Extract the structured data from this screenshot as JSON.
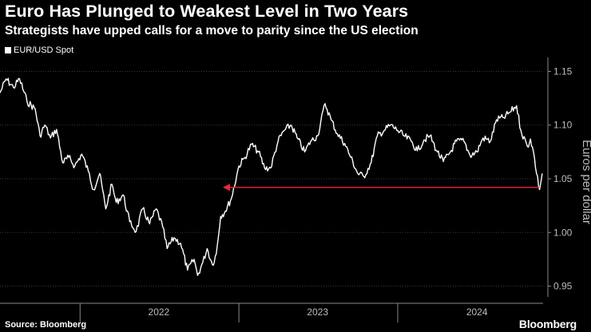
{
  "header": {
    "title": "Euro Has Plunged to Weakest Level in Two Years",
    "subtitle": "Strategists have upped calls for a move to parity since the US election"
  },
  "footer": {
    "source": "Source: Bloomberg",
    "brand": "Bloomberg"
  },
  "colors": {
    "background": "#000000",
    "line": "#ffffff",
    "arrow": "#e8283c",
    "grid": "#3a3a3a",
    "tick_text": "#bdbdbd"
  },
  "chart_data": {
    "type": "line",
    "ylabel": "Euros per dollar",
    "ylim": [
      0.94,
      1.16
    ],
    "yticks": [
      0.95,
      1.0,
      1.05,
      1.1,
      1.15
    ],
    "ytick_labels": [
      "0.95",
      "1.00",
      "1.05",
      "1.10",
      "1.15"
    ],
    "xlim": [
      "2021-07-01",
      "2024-11-30"
    ],
    "x_year_labels": [
      {
        "label": "2022",
        "at": "2022-07-01"
      },
      {
        "label": "2023",
        "at": "2023-07-01"
      },
      {
        "label": "2024",
        "at": "2024-07-01"
      }
    ],
    "x_year_boundaries": [
      "2022-01-01",
      "2023-01-01",
      "2024-01-01"
    ],
    "grid": true,
    "series": [
      {
        "name": "EUR/USD Spot",
        "points": [
          [
            "2021-07-01",
            1.13
          ],
          [
            "2021-07-15",
            1.143
          ],
          [
            "2021-08-01",
            1.135
          ],
          [
            "2021-08-15",
            1.143
          ],
          [
            "2021-09-01",
            1.122
          ],
          [
            "2021-09-20",
            1.115
          ],
          [
            "2021-10-01",
            1.09
          ],
          [
            "2021-10-12",
            1.1
          ],
          [
            "2021-10-25",
            1.088
          ],
          [
            "2021-11-08",
            1.096
          ],
          [
            "2021-11-22",
            1.065
          ],
          [
            "2021-12-06",
            1.07
          ],
          [
            "2021-12-20",
            1.062
          ],
          [
            "2022-01-05",
            1.073
          ],
          [
            "2022-01-20",
            1.057
          ],
          [
            "2022-02-01",
            1.04
          ],
          [
            "2022-02-15",
            1.055
          ],
          [
            "2022-03-01",
            1.022
          ],
          [
            "2022-03-15",
            1.045
          ],
          [
            "2022-03-25",
            1.028
          ],
          [
            "2022-04-10",
            1.035
          ],
          [
            "2022-04-25",
            1.01
          ],
          [
            "2022-05-10",
            1.001
          ],
          [
            "2022-05-25",
            1.022
          ],
          [
            "2022-06-10",
            1.008
          ],
          [
            "2022-06-25",
            1.022
          ],
          [
            "2022-07-10",
            1.005
          ],
          [
            "2022-07-20",
            0.985
          ],
          [
            "2022-08-05",
            0.995
          ],
          [
            "2022-08-20",
            0.99
          ],
          [
            "2022-09-05",
            0.965
          ],
          [
            "2022-09-20",
            0.975
          ],
          [
            "2022-09-28",
            0.96
          ],
          [
            "2022-10-10",
            0.972
          ],
          [
            "2022-10-20",
            0.985
          ],
          [
            "2022-11-01",
            0.97
          ],
          [
            "2022-11-10",
            0.98
          ],
          [
            "2022-11-20",
            1.015
          ],
          [
            "2022-12-01",
            1.02
          ],
          [
            "2022-12-15",
            1.032
          ],
          [
            "2023-01-01",
            1.062
          ],
          [
            "2023-01-15",
            1.07
          ],
          [
            "2023-01-30",
            1.082
          ],
          [
            "2023-02-15",
            1.075
          ],
          [
            "2023-03-01",
            1.06
          ],
          [
            "2023-03-15",
            1.06
          ],
          [
            "2023-04-01",
            1.085
          ],
          [
            "2023-04-15",
            1.095
          ],
          [
            "2023-05-01",
            1.1
          ],
          [
            "2023-05-15",
            1.088
          ],
          [
            "2023-06-01",
            1.075
          ],
          [
            "2023-06-15",
            1.085
          ],
          [
            "2023-07-01",
            1.09
          ],
          [
            "2023-07-18",
            1.12
          ],
          [
            "2023-08-01",
            1.105
          ],
          [
            "2023-08-15",
            1.092
          ],
          [
            "2023-09-01",
            1.083
          ],
          [
            "2023-09-15",
            1.07
          ],
          [
            "2023-10-01",
            1.055
          ],
          [
            "2023-10-15",
            1.052
          ],
          [
            "2023-11-01",
            1.065
          ],
          [
            "2023-11-15",
            1.09
          ],
          [
            "2023-12-01",
            1.095
          ],
          [
            "2023-12-15",
            1.1
          ],
          [
            "2024-01-01",
            1.095
          ],
          [
            "2024-01-15",
            1.09
          ],
          [
            "2024-02-01",
            1.085
          ],
          [
            "2024-02-15",
            1.076
          ],
          [
            "2024-03-01",
            1.086
          ],
          [
            "2024-03-15",
            1.09
          ],
          [
            "2024-04-01",
            1.075
          ],
          [
            "2024-04-15",
            1.066
          ],
          [
            "2024-05-01",
            1.075
          ],
          [
            "2024-05-15",
            1.085
          ],
          [
            "2024-06-01",
            1.085
          ],
          [
            "2024-06-15",
            1.072
          ],
          [
            "2024-07-01",
            1.075
          ],
          [
            "2024-07-15",
            1.088
          ],
          [
            "2024-08-01",
            1.085
          ],
          [
            "2024-08-15",
            1.105
          ],
          [
            "2024-09-01",
            1.107
          ],
          [
            "2024-09-15",
            1.112
          ],
          [
            "2024-09-30",
            1.118
          ],
          [
            "2024-10-10",
            1.095
          ],
          [
            "2024-10-25",
            1.08
          ],
          [
            "2024-11-01",
            1.087
          ],
          [
            "2024-11-08",
            1.075
          ],
          [
            "2024-11-15",
            1.055
          ],
          [
            "2024-11-22",
            1.04
          ],
          [
            "2024-11-28",
            1.055
          ]
        ]
      }
    ],
    "annotation": {
      "type": "arrow",
      "y": 1.042,
      "from": "2024-11-22",
      "to": "2022-11-25"
    }
  }
}
